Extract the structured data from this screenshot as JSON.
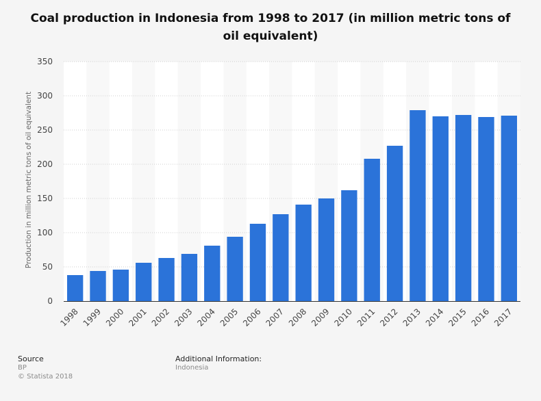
{
  "chart_data": {
    "type": "bar",
    "title": "Coal production in Indonesia from 1998 to 2017 (in million metric tons of oil equivalent)",
    "xlabel": "",
    "ylabel": "Production in million metric tons of oil equivalent",
    "ylim": [
      0,
      350
    ],
    "yticks": [
      0,
      50,
      100,
      150,
      200,
      250,
      300,
      350
    ],
    "grid": true,
    "categories": [
      "1998",
      "1999",
      "2000",
      "2001",
      "2002",
      "2003",
      "2004",
      "2005",
      "2006",
      "2007",
      "2008",
      "2009",
      "2010",
      "2011",
      "2012",
      "2013",
      "2014",
      "2015",
      "2016",
      "2017"
    ],
    "values": [
      38,
      44,
      46,
      56,
      63,
      69,
      81,
      94,
      113,
      127,
      141,
      150,
      162,
      208,
      227,
      279,
      270,
      272,
      269,
      271
    ],
    "bar_color": "#2b73d9"
  },
  "footer": {
    "source_label": "Source",
    "source_value": "BP",
    "copyright": "© Statista 2018",
    "additional_label": "Additional Information:",
    "additional_value": "Indonesia"
  }
}
